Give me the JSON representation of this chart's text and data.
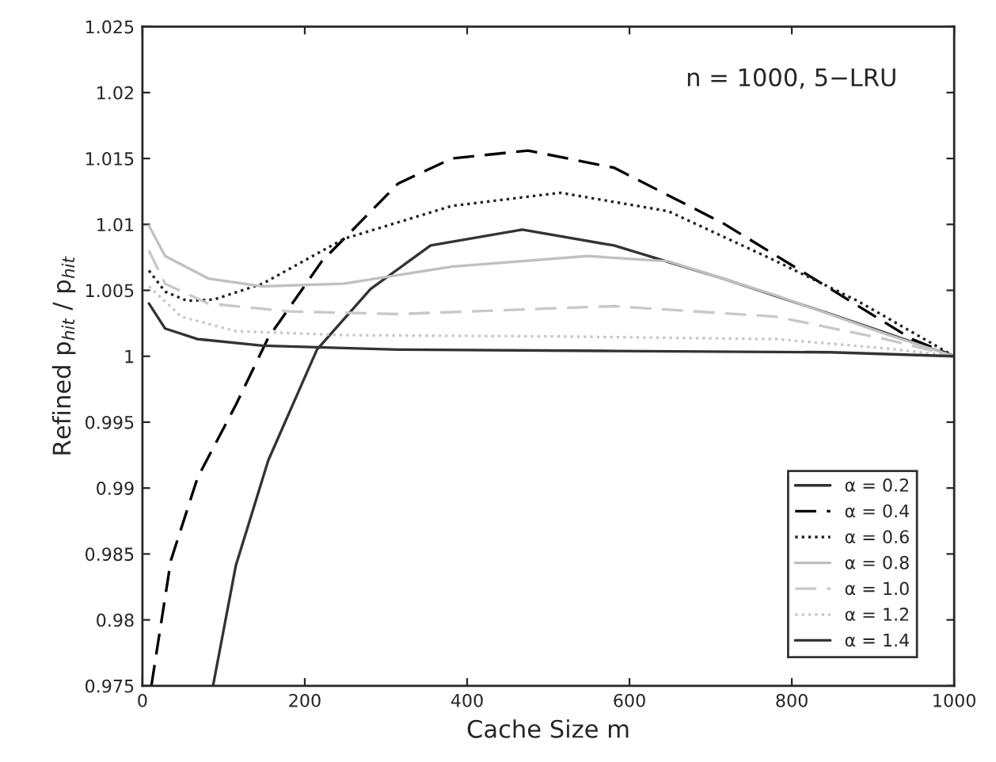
{
  "chart_data": {
    "type": "line",
    "xlabel": "Cache Size m",
    "ylabel": "Refined p$_{hit}$ / p$_{hit}$",
    "annotations": [
      "n = 1000, 5−LRU"
    ],
    "xlim": [
      0,
      1000
    ],
    "xticks": [
      0,
      200,
      400,
      600,
      800,
      1000
    ],
    "ylim": [
      0.975,
      1.025
    ],
    "yticks": [
      0.975,
      0.98,
      0.985,
      0.99,
      0.995,
      1,
      1.005,
      1.01,
      1.015,
      1.02,
      1.025
    ],
    "grid": false,
    "legend": "bottom right",
    "series": [
      {
        "name": "α = 0.2",
        "color": "#333333",
        "line_style": "solid",
        "x": [
          87,
          115,
          155,
          215,
          281,
          355,
          468,
          581,
          715,
          848,
          1000
        ],
        "values": [
          0.975,
          0.9841,
          0.9921,
          1.0005,
          1.0051,
          1.0084,
          1.0096,
          1.0084,
          1.0059,
          1.0032,
          1.0
        ]
      },
      {
        "name": "α = 0.4",
        "color": "#000000",
        "line_style": "dashed",
        "x": [
          11,
          35,
          68,
          115,
          155,
          221,
          315,
          381,
          475,
          581,
          715,
          848,
          948,
          1000
        ],
        "values": [
          0.975,
          0.9845,
          0.9908,
          0.9963,
          1.0014,
          1.0072,
          1.0131,
          1.015,
          1.0156,
          1.0143,
          1.0101,
          1.0051,
          1.0013,
          1.0
        ]
      },
      {
        "name": "α = 0.6",
        "color": "#222222",
        "line_style": "dotted",
        "x": [
          8,
          28,
          55,
          88,
          148,
          248,
          381,
          515,
          648,
          781,
          881,
          1000
        ],
        "values": [
          1.0065,
          1.0049,
          1.0042,
          1.0043,
          1.0055,
          1.0089,
          1.0114,
          1.0124,
          1.011,
          1.0072,
          1.0042,
          1.0
        ]
      },
      {
        "name": "α = 0.8",
        "color": "#c0c0c0",
        "line_style": "solid",
        "x": [
          8,
          28,
          81,
          148,
          248,
          381,
          548,
          648,
          781,
          915,
          1000
        ],
        "values": [
          1.0099,
          1.0076,
          1.0059,
          1.0053,
          1.0055,
          1.0068,
          1.0076,
          1.0072,
          1.0046,
          1.0017,
          1.0
        ]
      },
      {
        "name": "α = 1.0",
        "color": "#c8c8c8",
        "line_style": "dashed",
        "x": [
          8,
          28,
          81,
          181,
          315,
          581,
          781,
          915,
          1000
        ],
        "values": [
          1.008,
          1.0055,
          1.004,
          1.0034,
          1.0032,
          1.0038,
          1.003,
          1.0013,
          1.0
        ]
      },
      {
        "name": "α = 1.2",
        "color": "#c8c8c8",
        "line_style": "dotted",
        "x": [
          8,
          48,
          115,
          248,
          515,
          781,
          915,
          1000
        ],
        "values": [
          1.0053,
          1.003,
          1.0019,
          1.0016,
          1.0015,
          1.0013,
          1.0006,
          1.0
        ]
      },
      {
        "name": "α = 1.4",
        "color": "#333333",
        "line_style": "solid",
        "x": [
          8,
          28,
          68,
          148,
          315,
          581,
          848,
          1000
        ],
        "values": [
          1.004,
          1.0021,
          1.0013,
          1.0008,
          1.0005,
          1.0004,
          1.0003,
          1.0
        ]
      }
    ]
  }
}
